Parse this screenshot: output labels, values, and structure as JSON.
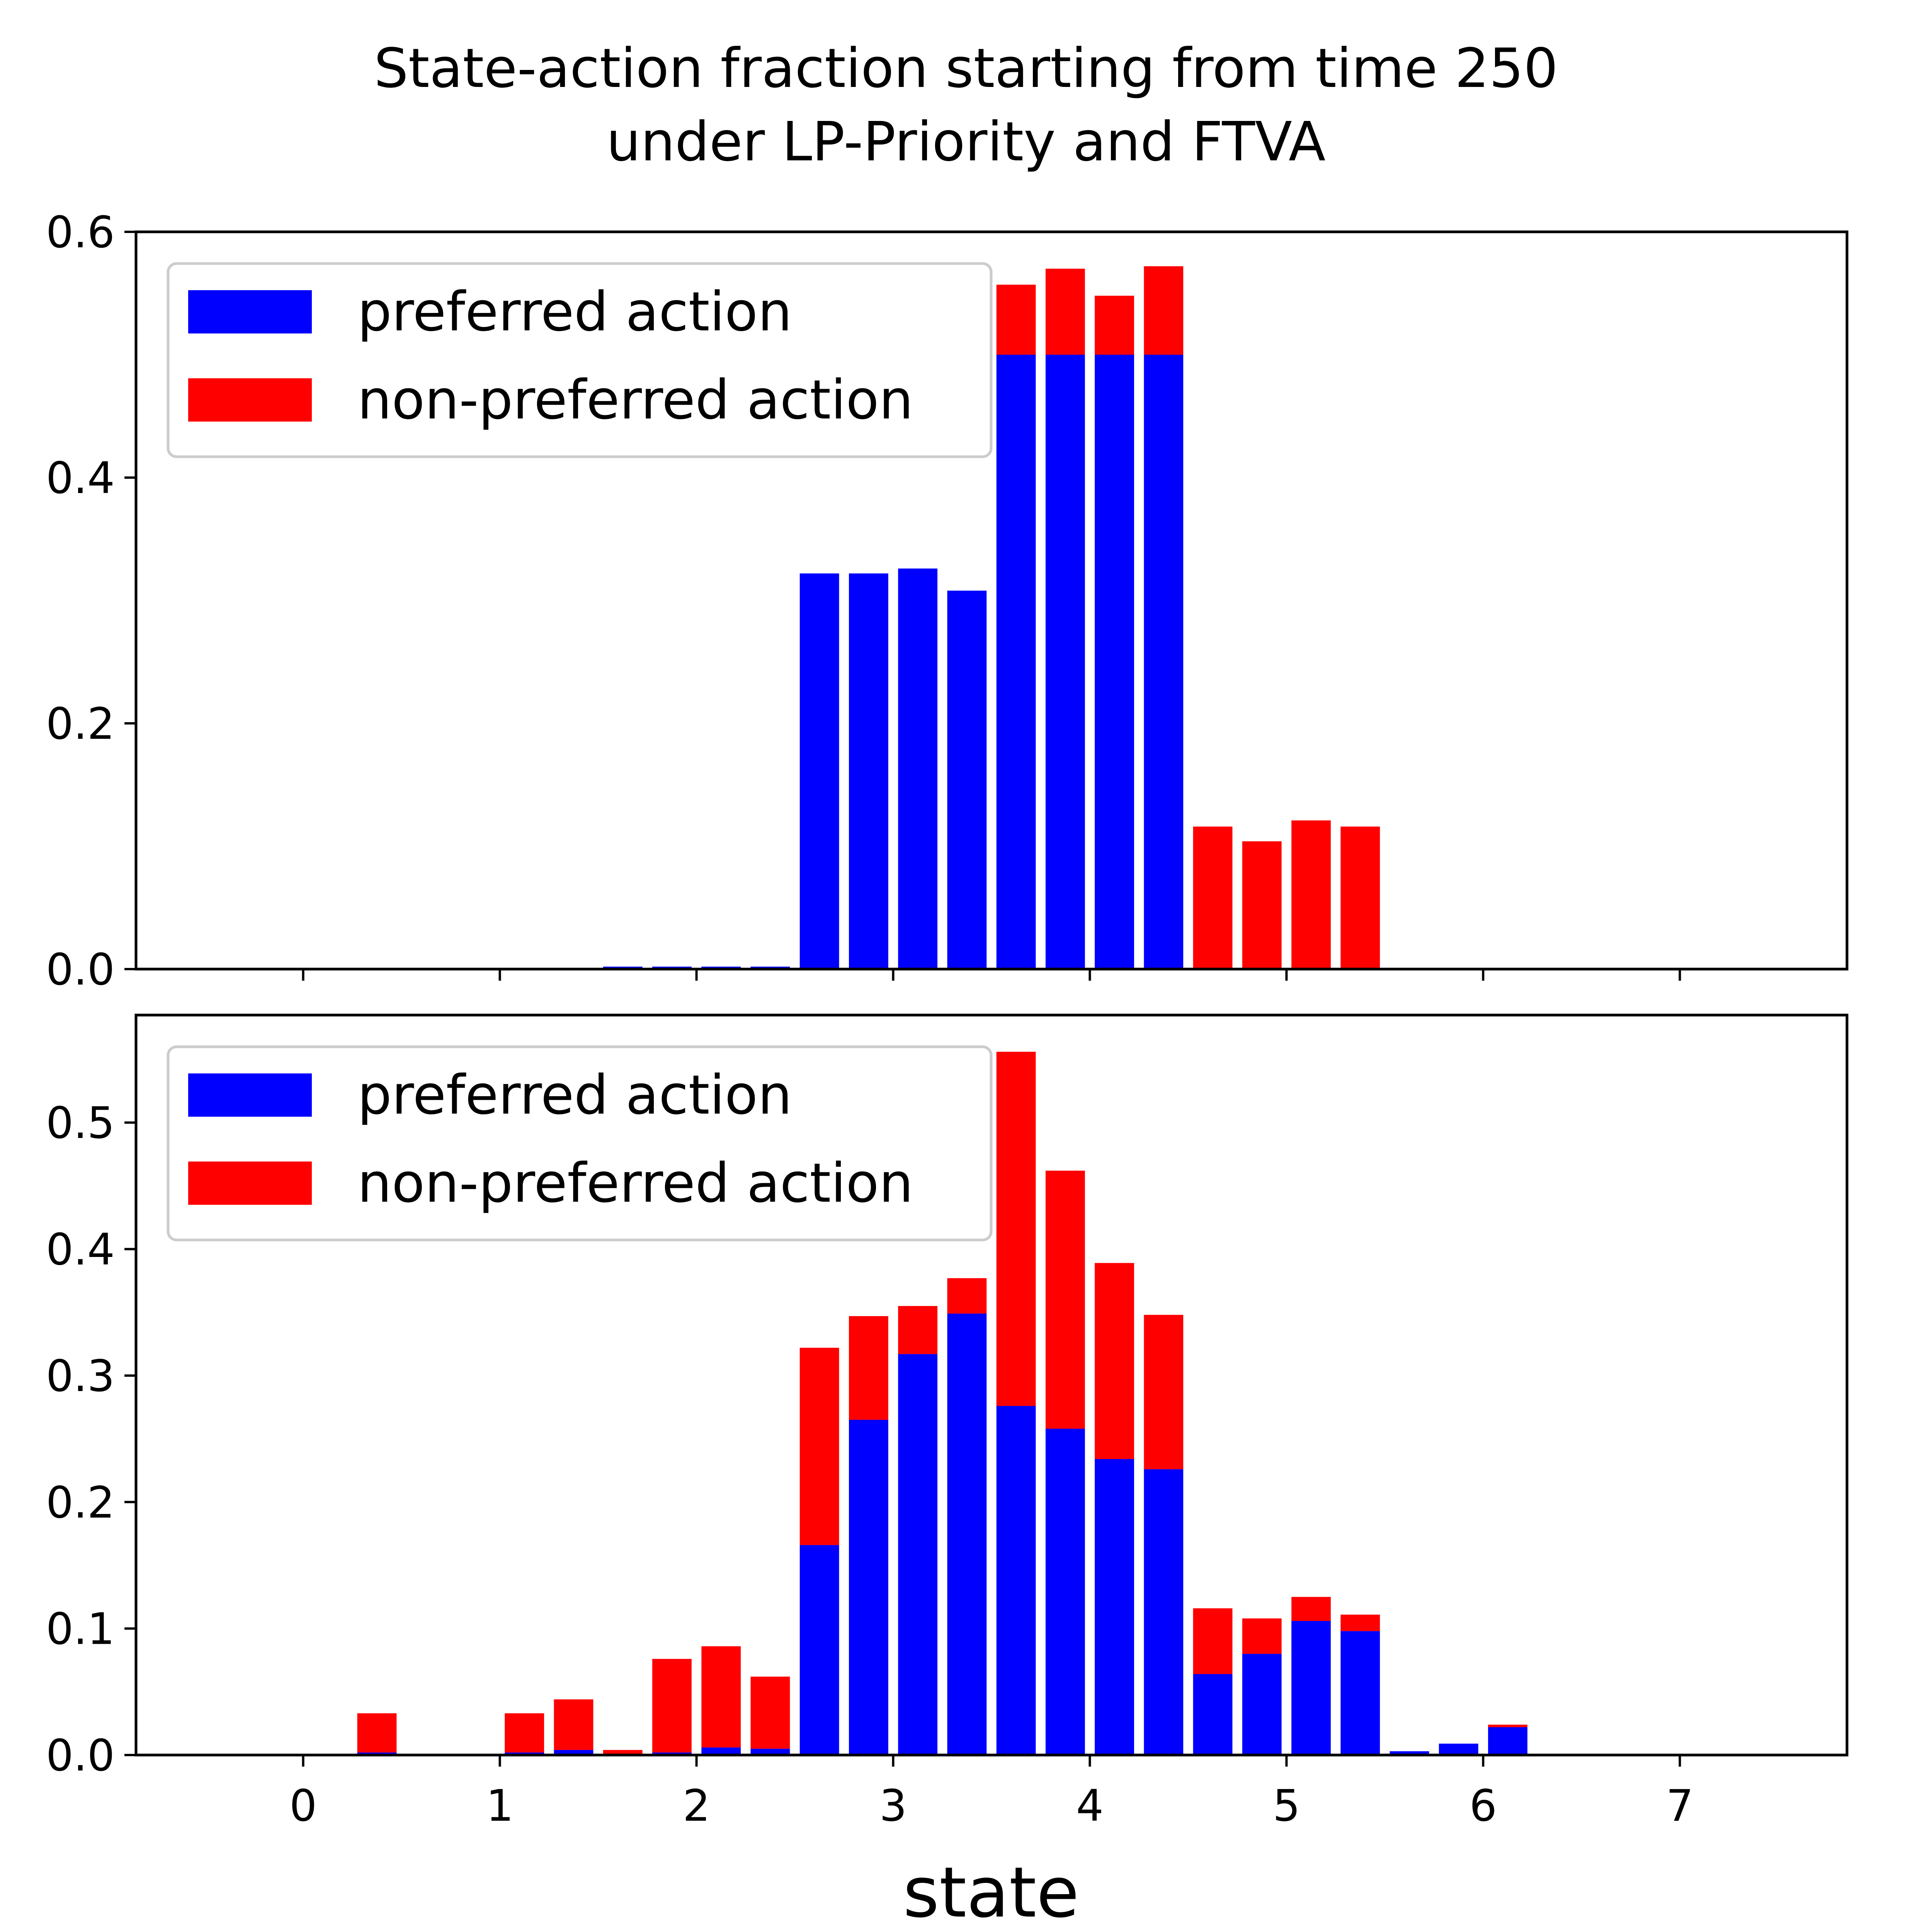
{
  "chart_data": [
    {
      "type": "bar",
      "stacked": true,
      "title_lines": [
        "State-action fraction starting from time 250",
        "under LP-Priority and FTVA"
      ],
      "xlabel": "",
      "ylabel": "",
      "ylim": [
        0,
        0.6
      ],
      "yticks": [
        "0.0",
        "0.2",
        "0.4",
        "0.6"
      ],
      "ytick_values": [
        0,
        0.2,
        0.4,
        0.6
      ],
      "xticks_shown": false,
      "legend": {
        "location": "upper-left",
        "entries": [
          "preferred action",
          "non-preferred action"
        ]
      },
      "colors": {
        "preferred": "#0000ff",
        "non_preferred": "#ff0000"
      },
      "x": [
        -0.375,
        -0.125,
        0.125,
        0.375,
        0.625,
        0.875,
        1.125,
        1.375,
        1.625,
        1.875,
        2.125,
        2.375,
        2.625,
        2.875,
        3.125,
        3.375,
        3.625,
        3.875,
        4.125,
        4.375,
        4.625,
        4.875,
        5.125,
        5.375,
        5.625,
        5.875,
        6.125,
        6.375,
        6.625,
        6.875,
        7.125,
        7.375
      ],
      "series": [
        {
          "name": "preferred action",
          "values": [
            0,
            0,
            0,
            0,
            0,
            0,
            0,
            0,
            0.002,
            0.002,
            0.002,
            0.002,
            0.322,
            0.322,
            0.326,
            0.308,
            0.5,
            0.5,
            0.5,
            0.5,
            0,
            0,
            0,
            0,
            0,
            0,
            0,
            0,
            0,
            0,
            0,
            0
          ]
        },
        {
          "name": "non-preferred action",
          "values": [
            0,
            0,
            0,
            0,
            0,
            0,
            0,
            0,
            0,
            0,
            0,
            0,
            0,
            0,
            0,
            0,
            0.057,
            0.07,
            0.048,
            0.072,
            0.116,
            0.104,
            0.121,
            0.116,
            0,
            0,
            0,
            0,
            0,
            0,
            0,
            0
          ]
        }
      ]
    },
    {
      "type": "bar",
      "stacked": true,
      "xlabel": "state",
      "ylabel": "",
      "xlim": [
        -0.85,
        7.85
      ],
      "ylim": [
        0,
        0.585
      ],
      "yticks": [
        "0.0",
        "0.1",
        "0.2",
        "0.3",
        "0.4",
        "0.5"
      ],
      "ytick_values": [
        0,
        0.1,
        0.2,
        0.3,
        0.4,
        0.5
      ],
      "xticks": [
        "0",
        "1",
        "2",
        "3",
        "4",
        "5",
        "6",
        "7"
      ],
      "xtick_values": [
        0,
        1,
        2,
        3,
        4,
        5,
        6,
        7
      ],
      "legend": {
        "location": "upper-left",
        "entries": [
          "preferred action",
          "non-preferred action"
        ]
      },
      "colors": {
        "preferred": "#0000ff",
        "non_preferred": "#ff0000"
      },
      "x": [
        -0.375,
        -0.125,
        0.125,
        0.375,
        0.625,
        0.875,
        1.125,
        1.375,
        1.625,
        1.875,
        2.125,
        2.375,
        2.625,
        2.875,
        3.125,
        3.375,
        3.625,
        3.875,
        4.125,
        4.375,
        4.625,
        4.875,
        5.125,
        5.375,
        5.625,
        5.875,
        6.125,
        6.375,
        6.625,
        6.875,
        7.125,
        7.375
      ],
      "series": [
        {
          "name": "preferred action",
          "values": [
            0,
            0,
            0,
            0.002,
            0,
            0,
            0.002,
            0.004,
            0,
            0.002,
            0.006,
            0.005,
            0.166,
            0.265,
            0.317,
            0.349,
            0.276,
            0.258,
            0.234,
            0.226,
            0.064,
            0.08,
            0.106,
            0.098,
            0.003,
            0.009,
            0.022,
            0,
            0,
            0,
            0,
            0
          ]
        },
        {
          "name": "non-preferred action",
          "values": [
            0,
            0,
            0.001,
            0.031,
            0,
            0,
            0.031,
            0.04,
            0.004,
            0.074,
            0.08,
            0.057,
            0.156,
            0.082,
            0.038,
            0.028,
            0.28,
            0.204,
            0.155,
            0.122,
            0.052,
            0.028,
            0.019,
            0.013,
            0,
            0,
            0.002,
            0,
            0,
            0,
            0,
            0
          ]
        }
      ]
    }
  ]
}
